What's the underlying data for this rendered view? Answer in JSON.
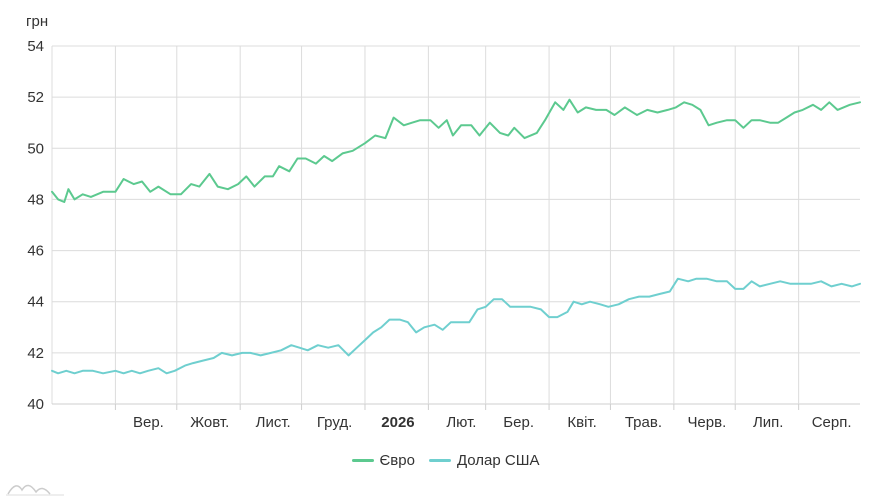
{
  "chart_data": {
    "type": "line",
    "y_unit_label": "грн",
    "ylim": [
      40,
      54
    ],
    "y_ticks": [
      40,
      42,
      44,
      46,
      48,
      50,
      52,
      54
    ],
    "x_range": [
      "2025-08-01",
      "2026-08-31"
    ],
    "x_ticks": [
      {
        "date": "2025-09-01",
        "label": "Вер.",
        "bold": false
      },
      {
        "date": "2025-10-01",
        "label": "Жовт.",
        "bold": false
      },
      {
        "date": "2025-11-01",
        "label": "Лист.",
        "bold": false
      },
      {
        "date": "2025-12-01",
        "label": "Груд.",
        "bold": false
      },
      {
        "date": "2026-01-01",
        "label": "2026",
        "bold": true
      },
      {
        "date": "2026-02-01",
        "label": "Лют.",
        "bold": false
      },
      {
        "date": "2026-03-01",
        "label": "Бер.",
        "bold": false
      },
      {
        "date": "2026-04-01",
        "label": "Квіт.",
        "bold": false
      },
      {
        "date": "2026-05-01",
        "label": "Трав.",
        "bold": false
      },
      {
        "date": "2026-06-01",
        "label": "Черв.",
        "bold": false
      },
      {
        "date": "2026-07-01",
        "label": "Лип.",
        "bold": false
      },
      {
        "date": "2026-08-01",
        "label": "Серп.",
        "bold": false
      }
    ],
    "grid": true,
    "legend_position": "bottom",
    "series": [
      {
        "name": "Євро",
        "color": "#5cc98f",
        "points": [
          [
            "2025-08-01",
            48.3
          ],
          [
            "2025-08-04",
            48.0
          ],
          [
            "2025-08-07",
            47.9
          ],
          [
            "2025-08-09",
            48.4
          ],
          [
            "2025-08-12",
            48.0
          ],
          [
            "2025-08-16",
            48.2
          ],
          [
            "2025-08-20",
            48.1
          ],
          [
            "2025-08-26",
            48.3
          ],
          [
            "2025-09-01",
            48.3
          ],
          [
            "2025-09-05",
            48.8
          ],
          [
            "2025-09-10",
            48.6
          ],
          [
            "2025-09-14",
            48.7
          ],
          [
            "2025-09-18",
            48.3
          ],
          [
            "2025-09-22",
            48.5
          ],
          [
            "2025-09-28",
            48.2
          ],
          [
            "2025-10-03",
            48.2
          ],
          [
            "2025-10-08",
            48.6
          ],
          [
            "2025-10-12",
            48.5
          ],
          [
            "2025-10-17",
            49.0
          ],
          [
            "2025-10-21",
            48.5
          ],
          [
            "2025-10-26",
            48.4
          ],
          [
            "2025-10-31",
            48.6
          ],
          [
            "2025-11-04",
            48.9
          ],
          [
            "2025-11-08",
            48.5
          ],
          [
            "2025-11-13",
            48.9
          ],
          [
            "2025-11-17",
            48.9
          ],
          [
            "2025-11-20",
            49.3
          ],
          [
            "2025-11-25",
            49.1
          ],
          [
            "2025-11-29",
            49.6
          ],
          [
            "2025-12-03",
            49.6
          ],
          [
            "2025-12-08",
            49.4
          ],
          [
            "2025-12-12",
            49.7
          ],
          [
            "2025-12-16",
            49.5
          ],
          [
            "2025-12-21",
            49.8
          ],
          [
            "2025-12-26",
            49.9
          ],
          [
            "2026-01-01",
            50.2
          ],
          [
            "2026-01-06",
            50.5
          ],
          [
            "2026-01-11",
            50.4
          ],
          [
            "2026-01-15",
            51.2
          ],
          [
            "2026-01-20",
            50.9
          ],
          [
            "2026-01-24",
            51.0
          ],
          [
            "2026-01-28",
            51.1
          ],
          [
            "2026-02-02",
            51.1
          ],
          [
            "2026-02-06",
            50.8
          ],
          [
            "2026-02-10",
            51.1
          ],
          [
            "2026-02-13",
            50.5
          ],
          [
            "2026-02-17",
            50.9
          ],
          [
            "2026-02-22",
            50.9
          ],
          [
            "2026-02-26",
            50.5
          ],
          [
            "2026-03-03",
            51.0
          ],
          [
            "2026-03-08",
            50.6
          ],
          [
            "2026-03-12",
            50.5
          ],
          [
            "2026-03-15",
            50.8
          ],
          [
            "2026-03-20",
            50.4
          ],
          [
            "2026-03-26",
            50.6
          ],
          [
            "2026-03-30",
            51.1
          ],
          [
            "2026-04-04",
            51.8
          ],
          [
            "2026-04-08",
            51.5
          ],
          [
            "2026-04-11",
            51.9
          ],
          [
            "2026-04-15",
            51.4
          ],
          [
            "2026-04-19",
            51.6
          ],
          [
            "2026-04-24",
            51.5
          ],
          [
            "2026-04-29",
            51.5
          ],
          [
            "2026-05-03",
            51.3
          ],
          [
            "2026-05-08",
            51.6
          ],
          [
            "2026-05-14",
            51.3
          ],
          [
            "2026-05-19",
            51.5
          ],
          [
            "2026-05-24",
            51.4
          ],
          [
            "2026-05-29",
            51.5
          ],
          [
            "2026-06-02",
            51.6
          ],
          [
            "2026-06-06",
            51.8
          ],
          [
            "2026-06-10",
            51.7
          ],
          [
            "2026-06-14",
            51.5
          ],
          [
            "2026-06-18",
            50.9
          ],
          [
            "2026-06-22",
            51.0
          ],
          [
            "2026-06-27",
            51.1
          ],
          [
            "2026-07-01",
            51.1
          ],
          [
            "2026-07-05",
            50.8
          ],
          [
            "2026-07-09",
            51.1
          ],
          [
            "2026-07-13",
            51.1
          ],
          [
            "2026-07-18",
            51.0
          ],
          [
            "2026-07-22",
            51.0
          ],
          [
            "2026-07-26",
            51.2
          ],
          [
            "2026-07-30",
            51.4
          ],
          [
            "2026-08-03",
            51.5
          ],
          [
            "2026-08-08",
            51.7
          ],
          [
            "2026-08-12",
            51.5
          ],
          [
            "2026-08-16",
            51.8
          ],
          [
            "2026-08-20",
            51.5
          ],
          [
            "2026-08-26",
            51.7
          ],
          [
            "2026-08-31",
            51.8
          ]
        ]
      },
      {
        "name": "Долар США",
        "color": "#6fcfcf",
        "points": [
          [
            "2025-08-01",
            41.3
          ],
          [
            "2025-08-04",
            41.2
          ],
          [
            "2025-08-08",
            41.3
          ],
          [
            "2025-08-12",
            41.2
          ],
          [
            "2025-08-16",
            41.3
          ],
          [
            "2025-08-21",
            41.3
          ],
          [
            "2025-08-26",
            41.2
          ],
          [
            "2025-09-01",
            41.3
          ],
          [
            "2025-09-05",
            41.2
          ],
          [
            "2025-09-09",
            41.3
          ],
          [
            "2025-09-13",
            41.2
          ],
          [
            "2025-09-17",
            41.3
          ],
          [
            "2025-09-22",
            41.4
          ],
          [
            "2025-09-26",
            41.2
          ],
          [
            "2025-09-30",
            41.3
          ],
          [
            "2025-10-05",
            41.5
          ],
          [
            "2025-10-09",
            41.6
          ],
          [
            "2025-10-14",
            41.7
          ],
          [
            "2025-10-19",
            41.8
          ],
          [
            "2025-10-23",
            42.0
          ],
          [
            "2025-10-28",
            41.9
          ],
          [
            "2025-11-02",
            42.0
          ],
          [
            "2025-11-06",
            42.0
          ],
          [
            "2025-11-11",
            41.9
          ],
          [
            "2025-11-16",
            42.0
          ],
          [
            "2025-11-21",
            42.1
          ],
          [
            "2025-11-26",
            42.3
          ],
          [
            "2025-11-30",
            42.2
          ],
          [
            "2025-12-04",
            42.1
          ],
          [
            "2025-12-09",
            42.3
          ],
          [
            "2025-12-14",
            42.2
          ],
          [
            "2025-12-19",
            42.3
          ],
          [
            "2025-12-24",
            41.9
          ],
          [
            "2025-12-28",
            42.2
          ],
          [
            "2026-01-01",
            42.5
          ],
          [
            "2026-01-05",
            42.8
          ],
          [
            "2026-01-09",
            43.0
          ],
          [
            "2026-01-13",
            43.3
          ],
          [
            "2026-01-18",
            43.3
          ],
          [
            "2026-01-22",
            43.2
          ],
          [
            "2026-01-26",
            42.8
          ],
          [
            "2026-01-30",
            43.0
          ],
          [
            "2026-02-04",
            43.1
          ],
          [
            "2026-02-08",
            42.9
          ],
          [
            "2026-02-12",
            43.2
          ],
          [
            "2026-02-17",
            43.2
          ],
          [
            "2026-02-21",
            43.2
          ],
          [
            "2026-02-25",
            43.7
          ],
          [
            "2026-03-01",
            43.8
          ],
          [
            "2026-03-05",
            44.1
          ],
          [
            "2026-03-09",
            44.1
          ],
          [
            "2026-03-13",
            43.8
          ],
          [
            "2026-03-18",
            43.8
          ],
          [
            "2026-03-23",
            43.8
          ],
          [
            "2026-03-28",
            43.7
          ],
          [
            "2026-04-01",
            43.4
          ],
          [
            "2026-04-05",
            43.4
          ],
          [
            "2026-04-10",
            43.6
          ],
          [
            "2026-04-13",
            44.0
          ],
          [
            "2026-04-17",
            43.9
          ],
          [
            "2026-04-21",
            44.0
          ],
          [
            "2026-04-26",
            43.9
          ],
          [
            "2026-04-30",
            43.8
          ],
          [
            "2026-05-05",
            43.9
          ],
          [
            "2026-05-10",
            44.1
          ],
          [
            "2026-05-15",
            44.2
          ],
          [
            "2026-05-20",
            44.2
          ],
          [
            "2026-05-25",
            44.3
          ],
          [
            "2026-05-30",
            44.4
          ],
          [
            "2026-06-03",
            44.9
          ],
          [
            "2026-06-08",
            44.8
          ],
          [
            "2026-06-12",
            44.9
          ],
          [
            "2026-06-17",
            44.9
          ],
          [
            "2026-06-22",
            44.8
          ],
          [
            "2026-06-27",
            44.8
          ],
          [
            "2026-07-01",
            44.5
          ],
          [
            "2026-07-05",
            44.5
          ],
          [
            "2026-07-09",
            44.8
          ],
          [
            "2026-07-13",
            44.6
          ],
          [
            "2026-07-18",
            44.7
          ],
          [
            "2026-07-23",
            44.8
          ],
          [
            "2026-07-28",
            44.7
          ],
          [
            "2026-08-02",
            44.7
          ],
          [
            "2026-08-07",
            44.7
          ],
          [
            "2026-08-12",
            44.8
          ],
          [
            "2026-08-17",
            44.6
          ],
          [
            "2026-08-22",
            44.7
          ],
          [
            "2026-08-27",
            44.6
          ],
          [
            "2026-08-31",
            44.7
          ]
        ]
      }
    ]
  }
}
